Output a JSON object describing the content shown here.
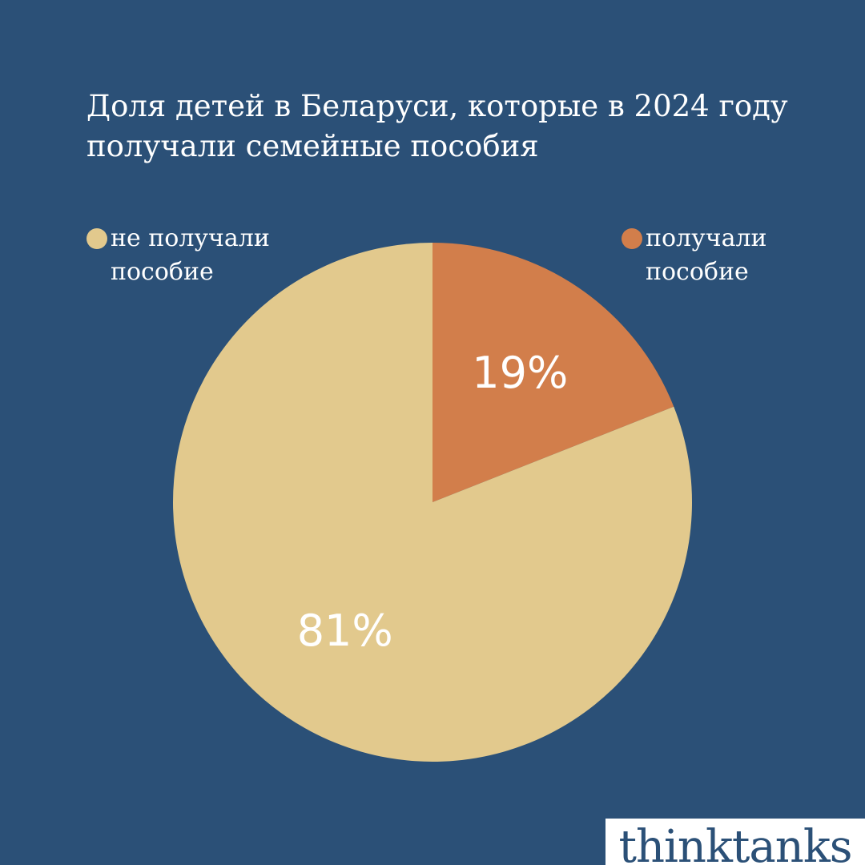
{
  "colors": {
    "background": "#2b5077",
    "not_received": "#e2c98d",
    "received": "#d27e4b",
    "text": "#ffffff"
  },
  "chart_data": {
    "type": "pie",
    "title_lines": [
      "Доля детей в Беларуси, которые в 2024 году",
      "получали семейные пособия"
    ],
    "slices": [
      {
        "name_lines": [
          "получали",
          "пособие"
        ],
        "value": 19,
        "label": "19%",
        "color": "#d27e4b"
      },
      {
        "name_lines": [
          "не получали",
          "пособие"
        ],
        "value": 81,
        "label": "81%",
        "color": "#e2c98d"
      }
    ],
    "legend_placement": "top"
  },
  "logo": {
    "text": "thinktanks"
  }
}
